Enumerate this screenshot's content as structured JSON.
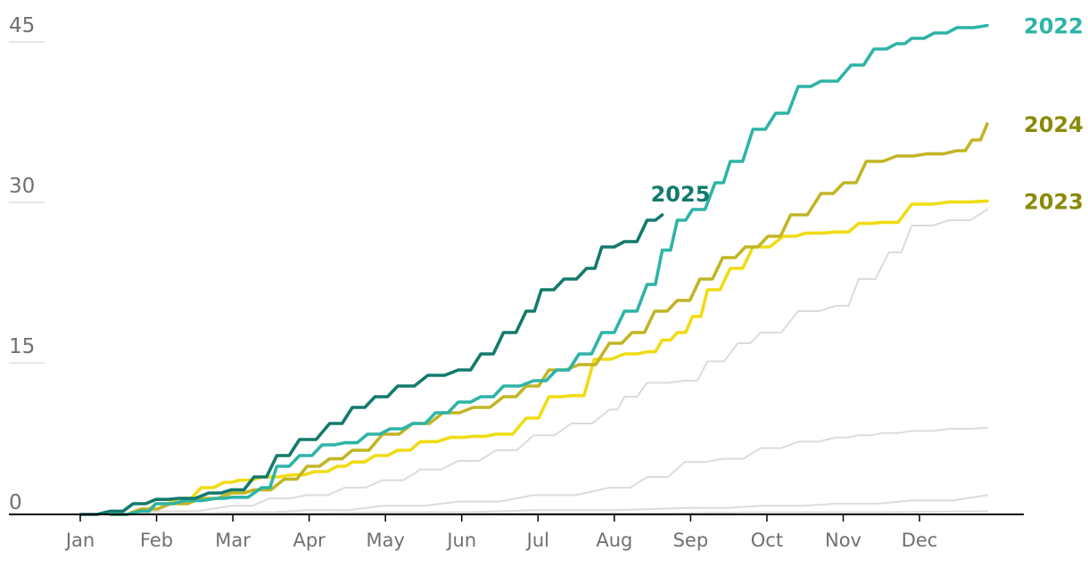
{
  "chart_data": {
    "type": "line",
    "title": "",
    "xlabel": "",
    "ylabel": "",
    "ylim": [
      0,
      45
    ],
    "yticks": [
      0,
      15,
      30,
      45
    ],
    "x_domain": [
      0,
      12
    ],
    "months": [
      "Jan",
      "Feb",
      "Mar",
      "Apr",
      "May",
      "Jun",
      "Jul",
      "Aug",
      "Sep",
      "Oct",
      "Nov",
      "Dec"
    ],
    "colors": {
      "2022": "#2db4a7",
      "2023": "#f0dc14",
      "2024": "#c2b526",
      "2025": "#137a6b",
      "label_2024": "#8a8a08",
      "label_2023": "#8a8a08",
      "other": "#dcdcdc",
      "axis": "#000000",
      "gridline": "#cccccc"
    },
    "series": [
      {
        "name": "",
        "key": "other",
        "x": [
          0,
          1,
          2,
          2.5,
          3,
          3.5,
          4,
          4.5,
          5,
          5.5,
          6,
          6.5,
          7,
          7.2,
          7.5,
          8,
          8.3,
          8.7,
          9,
          9.5,
          10,
          10.3,
          10.7,
          11,
          11.5,
          12
        ],
        "y": [
          0,
          0.3,
          0.8,
          1.5,
          1.8,
          2.5,
          3.2,
          4.2,
          5,
          6,
          7.4,
          8.5,
          9.8,
          11,
          12.3,
          12.5,
          14.3,
          16,
          17,
          19,
          19.5,
          22,
          24.5,
          27,
          27.5,
          28.5
        ]
      },
      {
        "name": "",
        "key": "other",
        "x": [
          0,
          1,
          2,
          3,
          4,
          5,
          6,
          7,
          7.5,
          8,
          8.5,
          9,
          9.5,
          10,
          10.3,
          10.6,
          11,
          11.5,
          12
        ],
        "y": [
          0,
          0.1,
          0.2,
          0.4,
          0.8,
          1.2,
          1.8,
          2.5,
          3.5,
          4.9,
          5.2,
          6.2,
          6.8,
          7.2,
          7.4,
          7.6,
          7.8,
          8,
          8.1
        ]
      },
      {
        "name": "",
        "key": "other",
        "x": [
          0,
          2,
          4,
          6,
          8,
          9,
          10,
          11,
          12
        ],
        "y": [
          0,
          0.1,
          0.2,
          0.4,
          0.6,
          0.8,
          1,
          1.3,
          1.8
        ]
      },
      {
        "name": "",
        "key": "other",
        "x": [
          0,
          3,
          6,
          9,
          12
        ],
        "y": [
          0,
          0.05,
          0.1,
          0.2,
          0.3
        ]
      },
      {
        "name": "2023",
        "key": "2023",
        "x": [
          0.4,
          0.8,
          1,
          1.3,
          1.6,
          1.9,
          2.1,
          2.4,
          2.8,
          3.1,
          3.4,
          3.6,
          3.9,
          4.2,
          4.5,
          4.9,
          5.2,
          5.5,
          5.9,
          6.2,
          6.5,
          6.8,
          7.2,
          7.5,
          7.7,
          7.9,
          8.1,
          8.3,
          8.6,
          8.9,
          9.3,
          9.6,
          10,
          10.3,
          10.6,
          11,
          11.5,
          12
        ],
        "y": [
          0,
          0.5,
          1,
          1.5,
          2.5,
          3,
          3.2,
          3.5,
          3.7,
          4,
          4.5,
          4.9,
          5.5,
          6,
          6.8,
          7.2,
          7.3,
          7.5,
          9,
          11,
          11.1,
          14.5,
          15,
          15.2,
          16.3,
          17,
          18.5,
          21,
          23,
          25,
          26,
          26.3,
          26.4,
          27.2,
          27.3,
          29,
          29.2,
          29.3
        ]
      },
      {
        "name": "2024",
        "key": "2024",
        "x": [
          0.4,
          0.8,
          1.2,
          1.6,
          2,
          2.3,
          2.7,
          3,
          3.3,
          3.6,
          4,
          4.4,
          4.8,
          5.2,
          5.6,
          5.9,
          6.2,
          6.6,
          7,
          7.3,
          7.6,
          7.9,
          8.2,
          8.5,
          8.8,
          9.1,
          9.4,
          9.8,
          10.1,
          10.4,
          10.8,
          11.2,
          11.6,
          11.8,
          12
        ],
        "y": [
          0,
          0.5,
          1,
          1.5,
          2,
          2.3,
          3.3,
          4.5,
          5.2,
          6,
          7.5,
          8.5,
          9.5,
          10,
          11,
          12,
          13.5,
          14,
          16,
          17,
          19,
          20,
          22,
          24,
          25,
          26,
          28,
          30,
          31,
          33,
          33.5,
          33.7,
          34,
          35,
          36.5
        ]
      },
      {
        "name": "2022",
        "key": "2022",
        "x": [
          0.4,
          0.8,
          1,
          1.4,
          1.8,
          2,
          2.4,
          2.6,
          2.9,
          3.2,
          3.5,
          3.8,
          4.1,
          4.4,
          4.7,
          5,
          5.3,
          5.6,
          6,
          6.3,
          6.6,
          6.9,
          7.2,
          7.5,
          7.7,
          7.9,
          8.1,
          8.4,
          8.6,
          8.9,
          9.2,
          9.5,
          9.8,
          10.2,
          10.5,
          10.8,
          11,
          11.3,
          11.6,
          12
        ],
        "y": [
          0,
          0.3,
          1,
          1.3,
          1.5,
          1.6,
          2.5,
          4.5,
          5.5,
          6.5,
          6.7,
          7.5,
          8,
          8.5,
          9.5,
          10.5,
          11,
          12,
          12.5,
          13.5,
          15,
          17,
          19,
          21.5,
          24.7,
          27.5,
          28.5,
          31,
          33,
          36,
          37.5,
          40,
          40.5,
          42,
          43.5,
          44,
          44.5,
          45,
          45.5,
          45.7
        ]
      },
      {
        "name": "2025",
        "key": "2025",
        "x": [
          0,
          0.4,
          0.7,
          1,
          1.3,
          1.7,
          2,
          2.3,
          2.6,
          2.9,
          3.3,
          3.6,
          3.9,
          4.2,
          4.6,
          5,
          5.3,
          5.6,
          5.9,
          6.1,
          6.4,
          6.7,
          6.9,
          7.2,
          7.5,
          7.7
        ],
        "y": [
          0,
          0.3,
          1,
          1.4,
          1.5,
          2,
          2.3,
          3.5,
          5.5,
          7,
          8.5,
          10,
          11,
          12,
          13,
          13.5,
          15,
          17,
          19,
          21,
          22,
          23,
          25,
          25.5,
          27.5,
          28
        ]
      }
    ],
    "series_labels": [
      {
        "text": "2022",
        "color_key": "2022",
        "at_x": 12,
        "at_y": 45.7
      },
      {
        "text": "2024",
        "color_key": "label_2024",
        "at_x": 12,
        "at_y": 36.5
      },
      {
        "text": "2023",
        "color_key": "label_2023",
        "at_x": 12,
        "at_y": 29.3
      },
      {
        "text": "2025",
        "color_key": "2025",
        "at_x": 7.5,
        "at_y": 30
      }
    ]
  }
}
